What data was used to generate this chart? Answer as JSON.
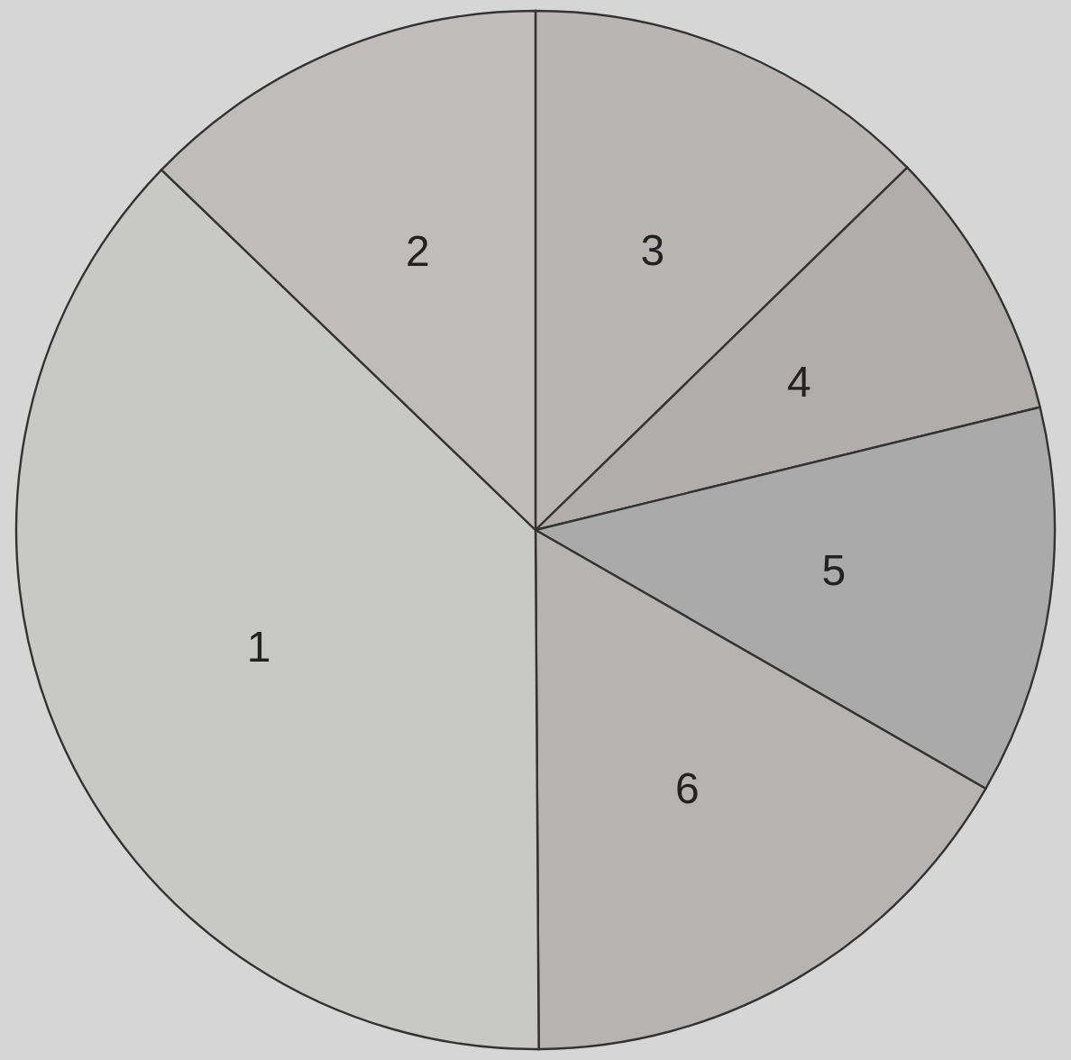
{
  "chart_data": {
    "type": "pie",
    "categories": [
      "3",
      "4",
      "5",
      "6",
      "1",
      "2"
    ],
    "values": [
      12.7,
      8.5,
      12.1,
      16.6,
      37.3,
      12.8
    ],
    "colors": [
      "#b9b5b5",
      "#b1adad",
      "#aaaaaa",
      "#b5b4b2",
      "#c8c8c6",
      "#c0bcbc"
    ]
  }
}
